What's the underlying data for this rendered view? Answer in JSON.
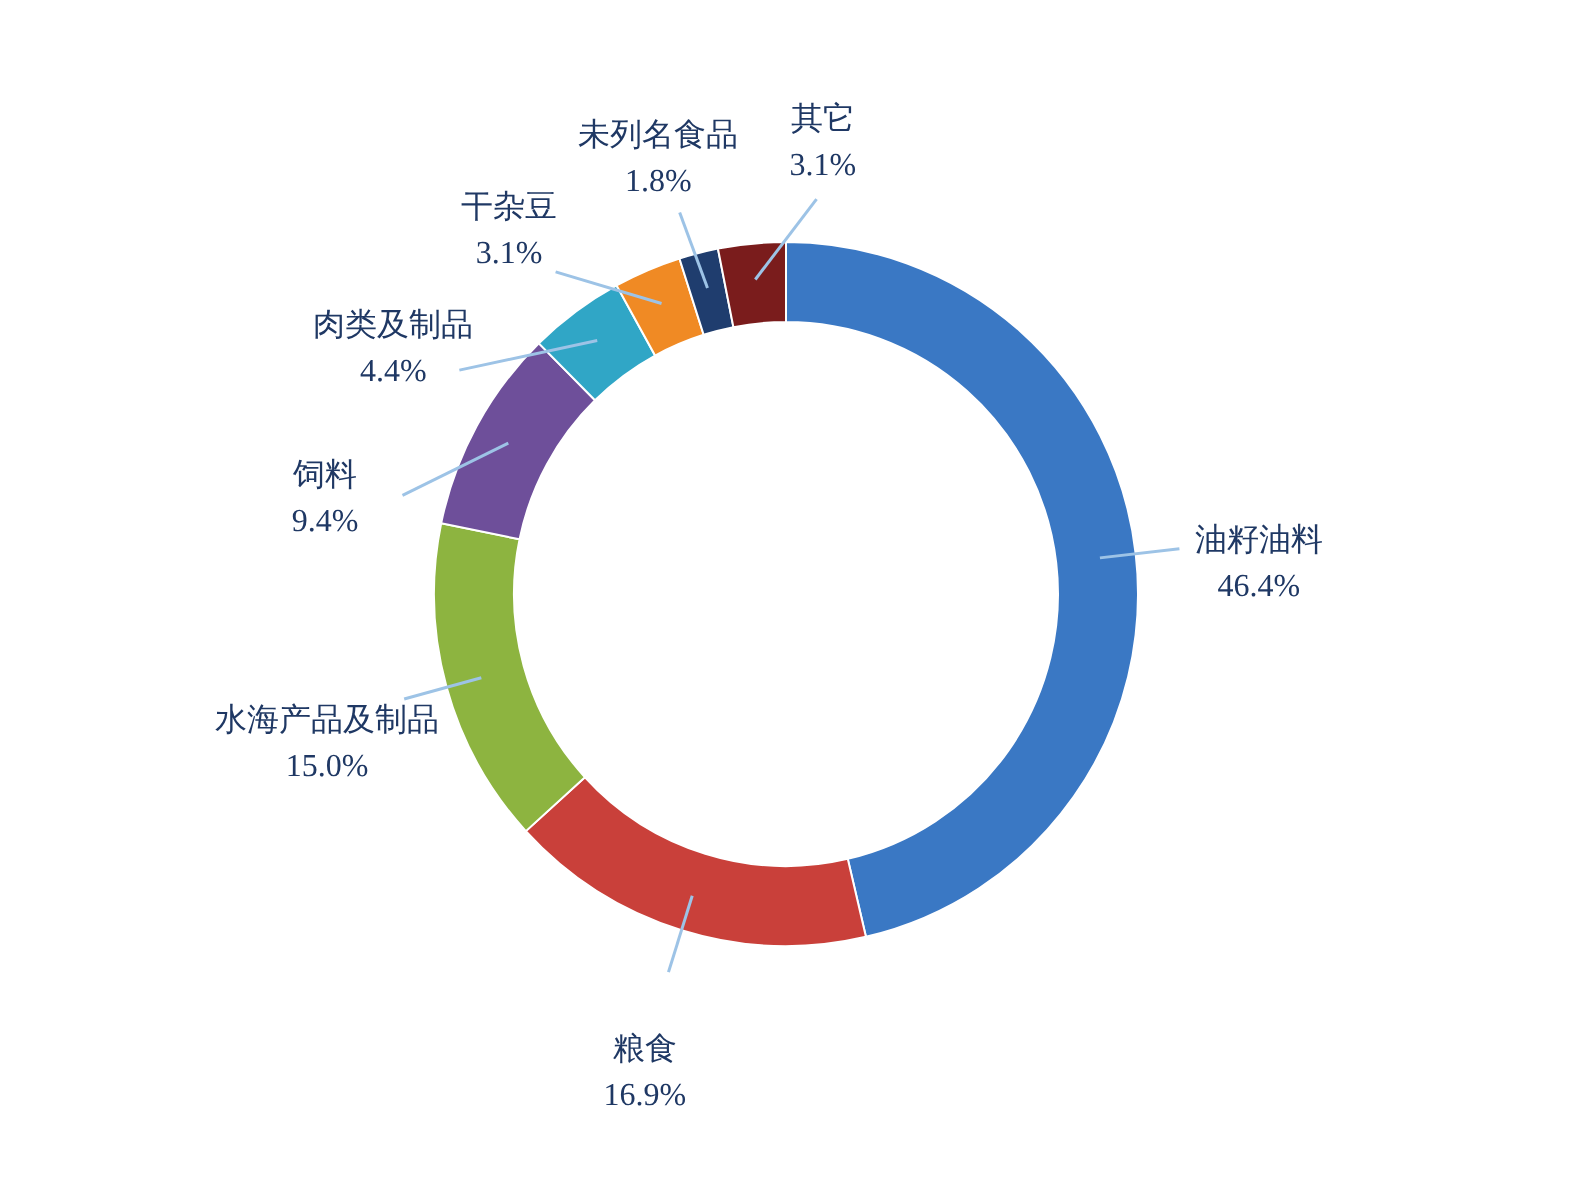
{
  "chart_data": {
    "type": "donut",
    "categories": [
      "油籽油料",
      "粮食",
      "水海产品及制品",
      "饲料",
      "肉类及制品",
      "干杂豆",
      "未列名食品",
      "其它"
    ],
    "values": [
      46.4,
      16.9,
      15.0,
      9.4,
      4.4,
      3.1,
      1.8,
      3.1
    ],
    "value_labels": [
      "46.4%",
      "16.9%",
      "15.0%",
      "9.4%",
      "4.4%",
      "3.1%",
      "1.8%",
      "3.1%"
    ],
    "colors": [
      "#3a78c4",
      "#c9403a",
      "#8db440",
      "#6e4f9a",
      "#30a6c6",
      "#f08a24",
      "#1f3d6e",
      "#7a1c1c"
    ]
  }
}
